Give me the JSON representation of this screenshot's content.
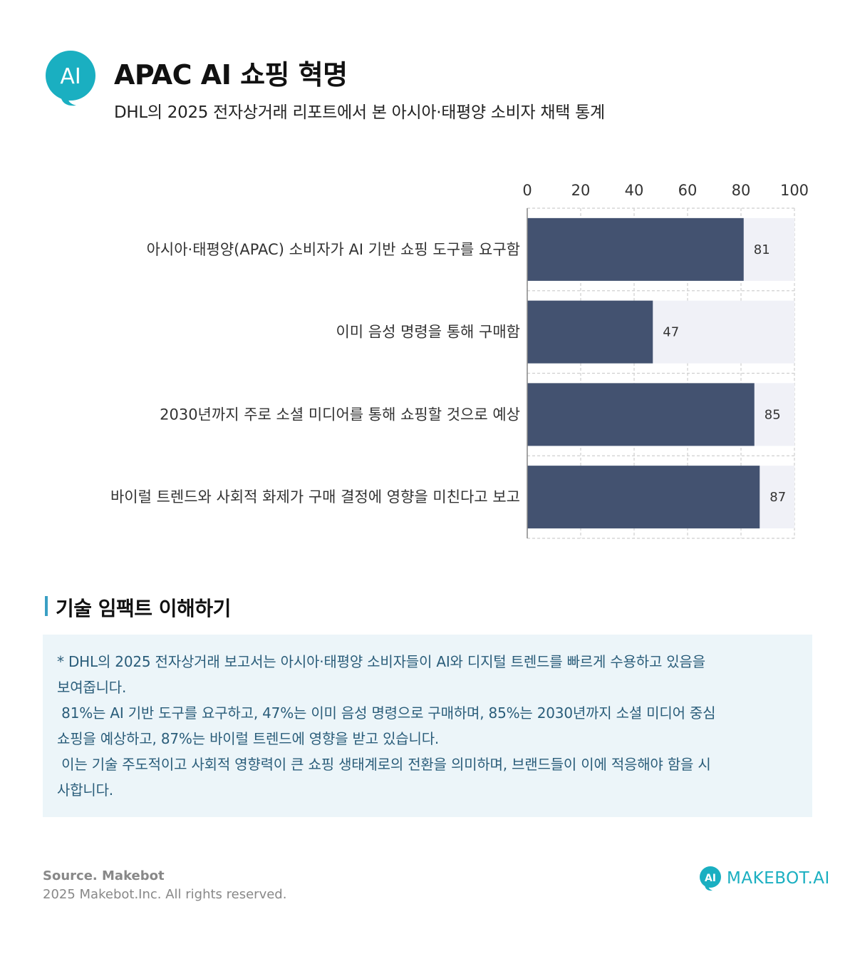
{
  "header": {
    "logo_text": "AI",
    "title": "APAC AI 쇼핑 혁명",
    "subtitle": "DHL의 2025 전자상거래 리포트에서 본 아시아·태평양 소비자 채택 통계"
  },
  "colors": {
    "accent": "#1aafc1",
    "bar": "#435270",
    "bar_track": "#f0f1f7",
    "notes_bg": "#ecf5f9",
    "notes_text": "#2a5d7a"
  },
  "chart_data": {
    "type": "bar",
    "orientation": "horizontal",
    "categories": [
      "아시아·태평양(APAC) 소비자가 AI 기반 쇼핑 도구를 요구함",
      "이미 음성 명령을 통해 구매함",
      "2030년까지 주로 소셜 미디어를 통해 쇼핑할 것으로 예상",
      "바이럴 트렌드와 사회적 화제가 구매 결정에 영향을 미친다고 보고"
    ],
    "values": [
      81,
      47,
      85,
      87
    ],
    "xlim": [
      0,
      100
    ],
    "x_ticks": [
      "0",
      "20",
      "40",
      "60",
      "80",
      "100"
    ],
    "x_axis_position": "top",
    "grid": true,
    "title": "",
    "xlabel": "",
    "ylabel": ""
  },
  "insight": {
    "heading": "기술 임팩트 이해하기",
    "lines": [
      "* DHL의 2025 전자상거래 보고서는 아시아·태평양 소비자들이 AI와 디지털 트렌드를 빠르게 수용하고 있음을",
      "보여줍니다.",
      " 81%는 AI 기반 도구를 요구하고, 47%는 이미 음성 명령으로 구매하며, 85%는 2030년까지 소셜 미디어 중심",
      "쇼핑을 예상하고, 87%는 바이럴 트렌드에 영향을 받고 있습니다.",
      " 이는 기술 주도적이고 사회적 영향력이 큰 쇼핑 생태계로의 전환을 의미하며, 브랜드들이 이에 적응해야 함을 시",
      "사합니다."
    ]
  },
  "footer": {
    "source": "Source. Makebot",
    "copyright": "2025 Makebot.Inc. All rights reserved.",
    "brand_icon_text": "AI",
    "brand_text": "MAKEBOT.AI"
  }
}
